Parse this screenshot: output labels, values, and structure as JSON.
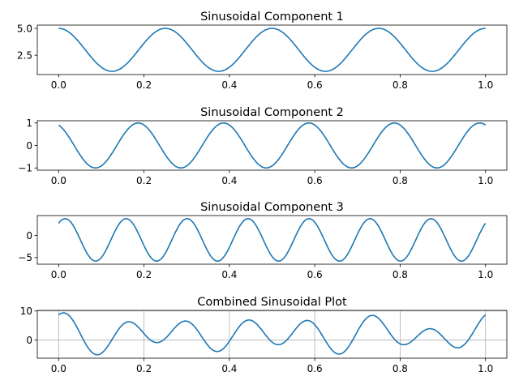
{
  "chart_data": [
    {
      "type": "line",
      "title": "Sinusoidal Component 1",
      "xlim": [
        -0.05,
        1.05
      ],
      "ylim": [
        0.7,
        5.3
      ],
      "xticks": [
        0.0,
        0.2,
        0.4,
        0.6,
        0.8,
        1.0
      ],
      "xtick_labels": [
        "0.0",
        "0.2",
        "0.4",
        "0.6",
        "0.8",
        "1.0"
      ],
      "yticks": [
        2.5,
        5.0
      ],
      "ytick_labels": [
        "2.5",
        "5.0"
      ],
      "grid": false,
      "series": [
        {
          "formula": "3 + 2*cos(8*pi*x)",
          "x_range": [
            0,
            1
          ],
          "color": "#1f77b4"
        }
      ]
    },
    {
      "type": "line",
      "title": "Sinusoidal Component 2",
      "xlim": [
        -0.05,
        1.05
      ],
      "ylim": [
        -1.1,
        1.1
      ],
      "xticks": [
        0.0,
        0.2,
        0.4,
        0.6,
        0.8,
        1.0
      ],
      "xtick_labels": [
        "0.0",
        "0.2",
        "0.4",
        "0.6",
        "0.8",
        "1.0"
      ],
      "yticks": [
        -1,
        0,
        1
      ],
      "ytick_labels": [
        "−1",
        "0",
        "1"
      ],
      "grid": false,
      "series": [
        {
          "formula": "sin(10*pi*x + 2)",
          "x_range": [
            0,
            1
          ],
          "color": "#1f77b4"
        }
      ]
    },
    {
      "type": "line",
      "title": "Sinusoidal Component 3",
      "xlim": [
        -0.05,
        1.05
      ],
      "ylim": [
        -6.5,
        4.5
      ],
      "xticks": [
        0.0,
        0.2,
        0.4,
        0.6,
        0.8,
        1.0
      ],
      "xtick_labels": [
        "0.0",
        "0.2",
        "0.4",
        "0.6",
        "0.8",
        "1.0"
      ],
      "yticks": [
        -5,
        0
      ],
      "ytick_labels": [
        "−5",
        "0"
      ],
      "grid": false,
      "series": [
        {
          "formula": "-1 + 4.8*sin(14*pi*x + 0.9)",
          "x_range": [
            0,
            1
          ],
          "color": "#1f77b4"
        }
      ]
    },
    {
      "type": "line",
      "title": "Combined Sinusoidal Plot",
      "xlim": [
        -0.05,
        1.05
      ],
      "ylim": [
        -6.2,
        10.2
      ],
      "xticks": [
        0.0,
        0.2,
        0.4,
        0.6,
        0.8,
        1.0
      ],
      "xtick_labels": [
        "0.0",
        "0.2",
        "0.4",
        "0.6",
        "0.8",
        "1.0"
      ],
      "yticks": [
        0,
        10
      ],
      "ytick_labels": [
        "0",
        "10"
      ],
      "grid": true,
      "series": [
        {
          "formula": "sum of components 1–3",
          "x_range": [
            0,
            1
          ],
          "color": "#1f77b4"
        }
      ]
    }
  ]
}
